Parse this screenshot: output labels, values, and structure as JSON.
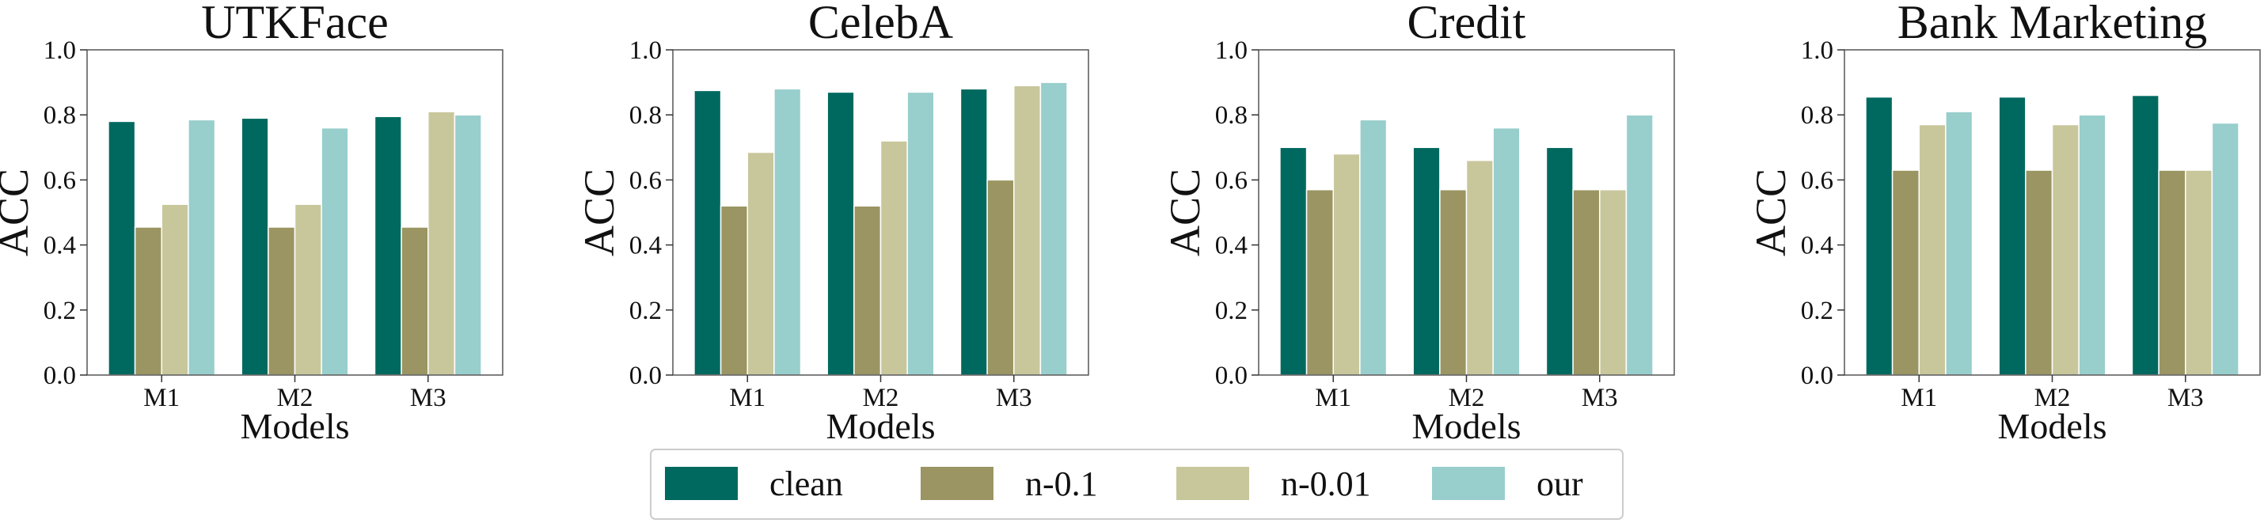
{
  "figure": {
    "legend": {
      "entries": [
        "clean",
        "n-0.1",
        "n-0.01",
        "our"
      ],
      "location": "bottom-center"
    },
    "colors": {
      "clean": "#00695f",
      "n-0.1": "#9a9562",
      "n-0.01": "#c8c79c",
      "our": "#98cecc"
    }
  },
  "chart_data": [
    {
      "type": "bar",
      "title": "UTKFace",
      "xlabel": "Models",
      "ylabel": "ACC",
      "categories": [
        "M1",
        "M2",
        "M3"
      ],
      "ylim": [
        0,
        1.0
      ],
      "yticks": [
        "0.0",
        "0.2",
        "0.4",
        "0.6",
        "0.8",
        "1.0"
      ],
      "series": [
        {
          "name": "clean",
          "values": [
            0.78,
            0.79,
            0.795
          ]
        },
        {
          "name": "n-0.1",
          "values": [
            0.455,
            0.455,
            0.455
          ]
        },
        {
          "name": "n-0.01",
          "values": [
            0.525,
            0.525,
            0.81
          ]
        },
        {
          "name": "our",
          "values": [
            0.785,
            0.76,
            0.8
          ]
        }
      ]
    },
    {
      "type": "bar",
      "title": "CelebA",
      "xlabel": "Models",
      "ylabel": "ACC",
      "categories": [
        "M1",
        "M2",
        "M3"
      ],
      "ylim": [
        0,
        1.0
      ],
      "yticks": [
        "0.0",
        "0.2",
        "0.4",
        "0.6",
        "0.8",
        "1.0"
      ],
      "series": [
        {
          "name": "clean",
          "values": [
            0.875,
            0.87,
            0.88
          ]
        },
        {
          "name": "n-0.1",
          "values": [
            0.52,
            0.52,
            0.6
          ]
        },
        {
          "name": "n-0.01",
          "values": [
            0.685,
            0.72,
            0.89
          ]
        },
        {
          "name": "our",
          "values": [
            0.88,
            0.87,
            0.9
          ]
        }
      ]
    },
    {
      "type": "bar",
      "title": "Credit",
      "xlabel": "Models",
      "ylabel": "ACC",
      "categories": [
        "M1",
        "M2",
        "M3"
      ],
      "ylim": [
        0,
        1.0
      ],
      "yticks": [
        "0.0",
        "0.2",
        "0.4",
        "0.6",
        "0.8",
        "1.0"
      ],
      "series": [
        {
          "name": "clean",
          "values": [
            0.7,
            0.7,
            0.7
          ]
        },
        {
          "name": "n-0.1",
          "values": [
            0.57,
            0.57,
            0.57
          ]
        },
        {
          "name": "n-0.01",
          "values": [
            0.68,
            0.66,
            0.57
          ]
        },
        {
          "name": "our",
          "values": [
            0.785,
            0.76,
            0.8
          ]
        }
      ]
    },
    {
      "type": "bar",
      "title": "Bank Marketing",
      "xlabel": "Models",
      "ylabel": "ACC",
      "categories": [
        "M1",
        "M2",
        "M3"
      ],
      "ylim": [
        0,
        1.0
      ],
      "yticks": [
        "0.0",
        "0.2",
        "0.4",
        "0.6",
        "0.8",
        "1.0"
      ],
      "series": [
        {
          "name": "clean",
          "values": [
            0.855,
            0.855,
            0.86
          ]
        },
        {
          "name": "n-0.1",
          "values": [
            0.63,
            0.63,
            0.63
          ]
        },
        {
          "name": "n-0.01",
          "values": [
            0.77,
            0.77,
            0.63
          ]
        },
        {
          "name": "our",
          "values": [
            0.81,
            0.8,
            0.775
          ]
        }
      ]
    }
  ]
}
